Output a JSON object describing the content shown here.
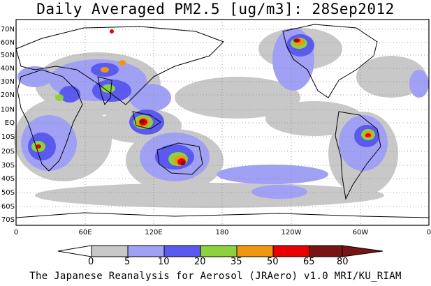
{
  "title": "Daily Averaged PM2.5 [ug/m3]: 28Sep2012",
  "lat_labels": [
    "70N",
    "60N",
    "50N",
    "40N",
    "30N",
    "20N",
    "10N",
    "EQ",
    "10S",
    "20S",
    "30S",
    "40S",
    "50S",
    "60S",
    "70S"
  ],
  "lon_labels": [
    "0",
    "60E",
    "120E",
    "180",
    "120W",
    "60W",
    "0"
  ],
  "colorbar": {
    "levels": [
      "0",
      "5",
      "10",
      "20",
      "35",
      "50",
      "65",
      "80"
    ],
    "colors": [
      "#ffffff",
      "#c8c8c8",
      "#a0a0f5",
      "#5a5af0",
      "#8cd23c",
      "#f0960f",
      "#e60000",
      "#781414"
    ]
  },
  "footer": "The Japanese Reanalysis for Aerosol (JRAero) v1.0 MRI/KU_RIAM"
}
